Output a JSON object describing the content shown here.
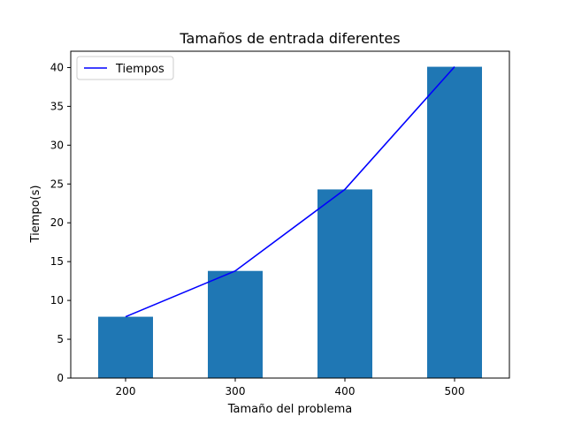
{
  "chart_data": {
    "type": "bar",
    "title": "Tamaños de entrada diferentes",
    "xlabel": "Tamaño del problema",
    "ylabel": "Tiempo(s)",
    "categories": [
      "200",
      "300",
      "400",
      "500"
    ],
    "series": [
      {
        "type": "bar",
        "values": [
          7.9,
          13.8,
          24.3,
          40.1
        ],
        "color": "#1f77b4"
      },
      {
        "type": "line",
        "name": "Tiempos",
        "values": [
          7.9,
          13.8,
          24.3,
          40.1
        ],
        "color": "#0000ff"
      }
    ],
    "yticks": [
      0,
      5,
      10,
      15,
      20,
      25,
      30,
      35,
      40
    ],
    "ylim": [
      0,
      42.1
    ],
    "grid": false,
    "legend": {
      "position": "top-left",
      "entries": [
        "Tiempos"
      ]
    }
  }
}
